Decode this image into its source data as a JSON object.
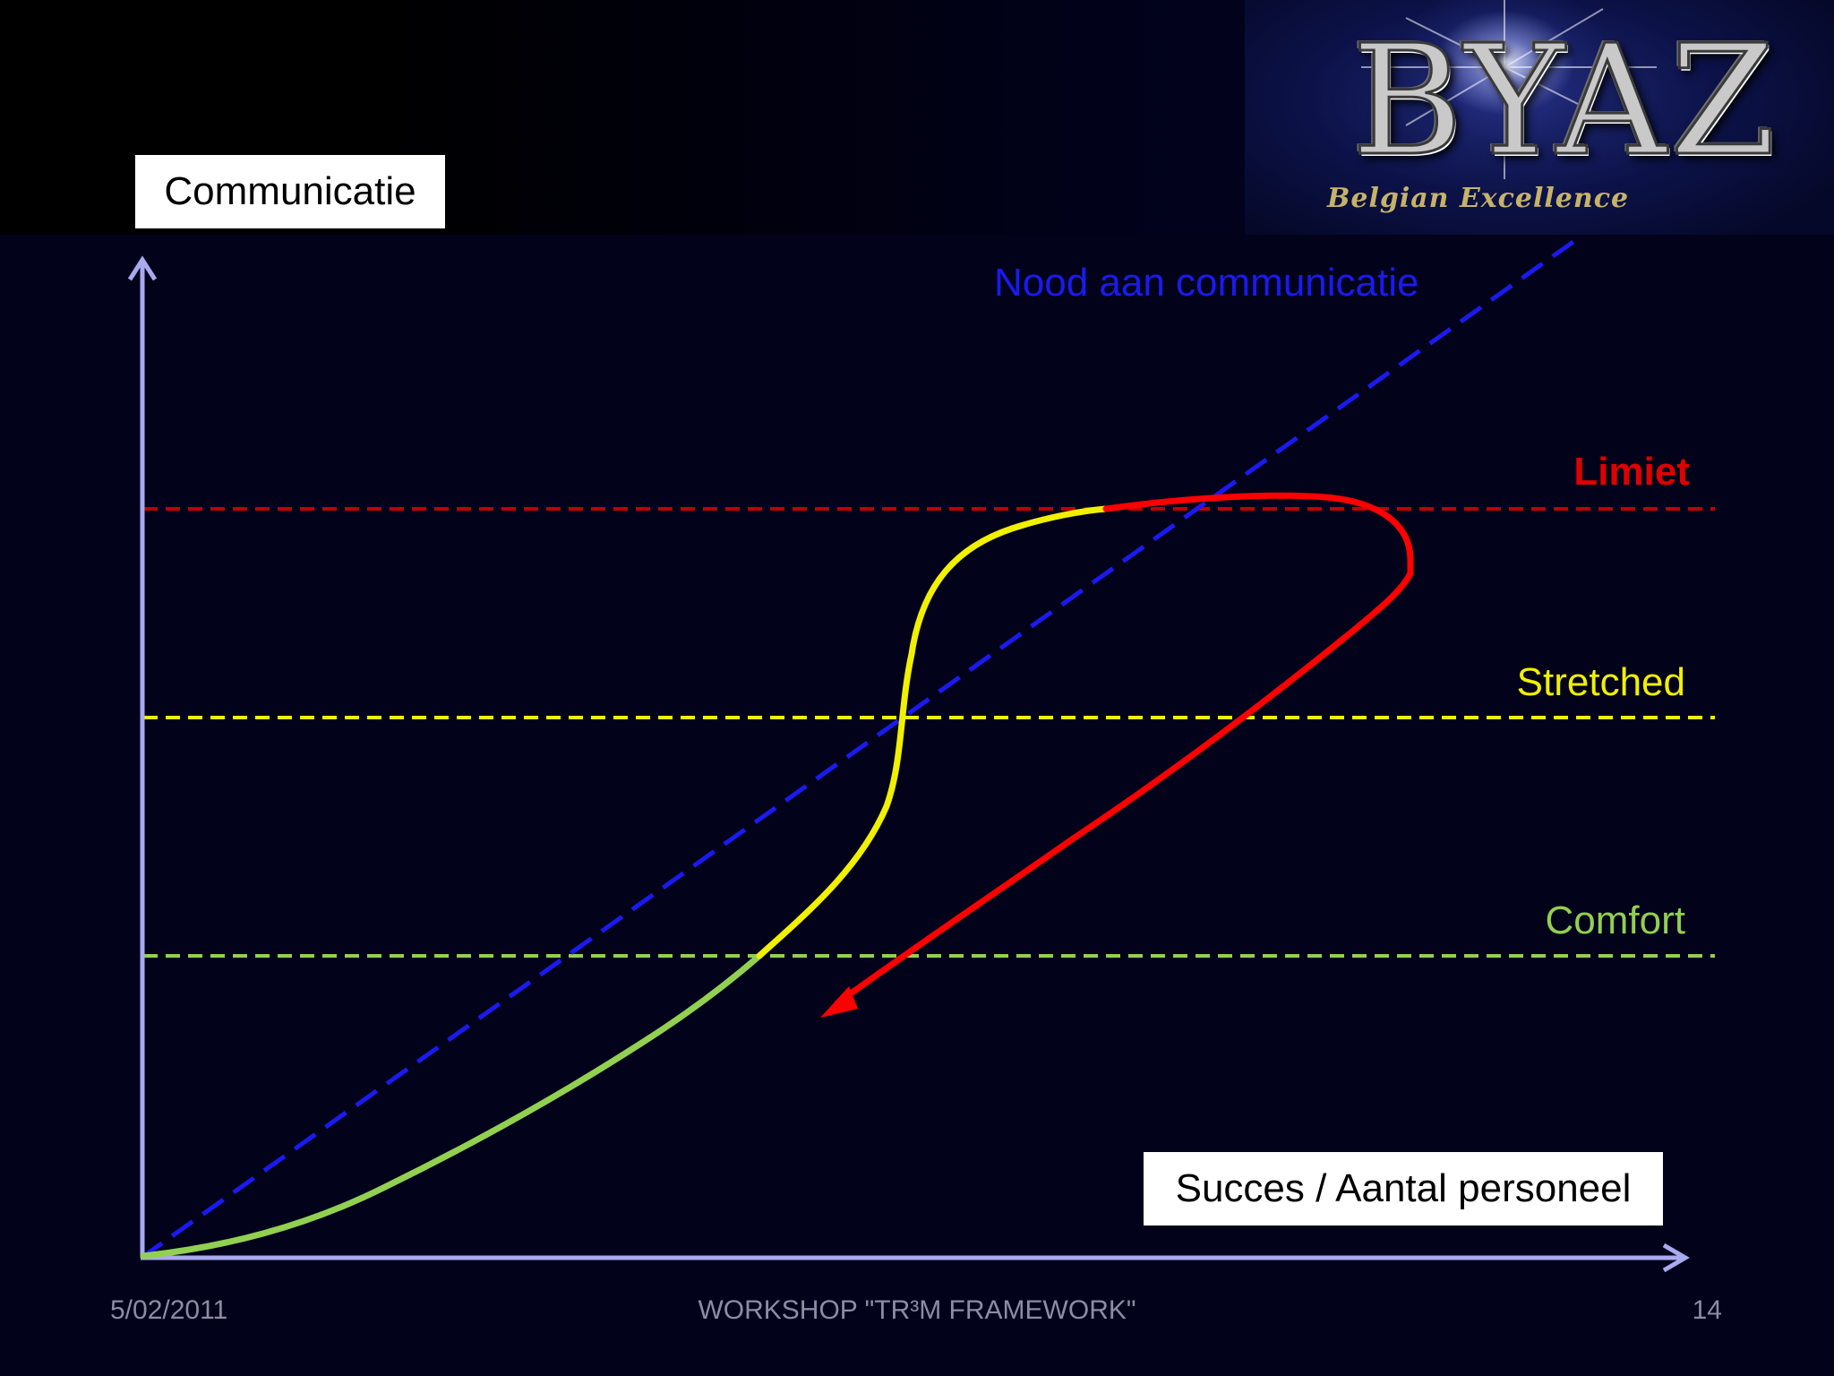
{
  "slide": {
    "axis_y_label": "Communicatie",
    "axis_x_label": "Succes / Aantal personeel",
    "lines": {
      "need": "Nood aan communicatie",
      "limit": "Limiet",
      "stretched": "Stretched",
      "comfort": "Comfort"
    },
    "footer": {
      "date": "5/02/2011",
      "title": "WORKSHOP \"TR³M FRAMEWORK\"",
      "page": "14"
    }
  },
  "logo": {
    "text": "BYAZ",
    "subtitle": "Belgian Excellence"
  },
  "colors": {
    "background": "#02021a",
    "axis": "#a9a9f0",
    "need": "#1a1af0",
    "limit": "#c00000",
    "stretched": "#f0f000",
    "comfort": "#92d050",
    "decline": "#ff0000"
  }
}
